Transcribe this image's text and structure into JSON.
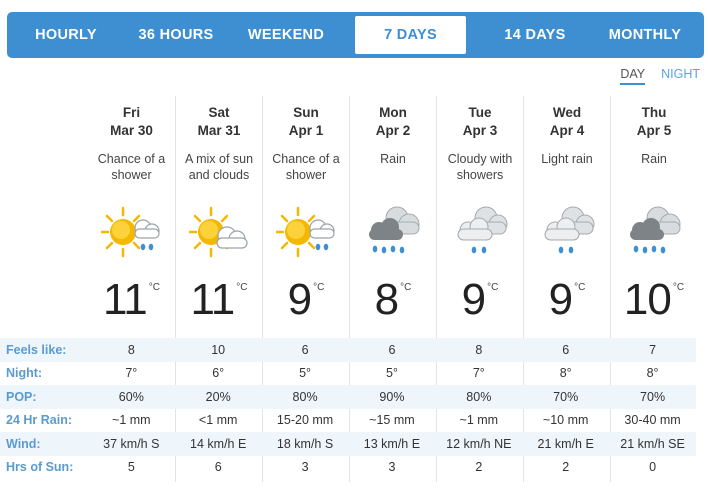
{
  "tabs": [
    {
      "label": "HOURLY",
      "active": false
    },
    {
      "label": "36 HOURS",
      "active": false
    },
    {
      "label": "WEEKEND",
      "active": false
    },
    {
      "label": "7 DAYS",
      "active": true
    },
    {
      "label": "14 DAYS",
      "active": false
    },
    {
      "label": "MONTHLY",
      "active": false
    }
  ],
  "toggle": {
    "day": "DAY",
    "night": "NIGHT",
    "selected": "DAY"
  },
  "temp_unit": "°C",
  "days": [
    {
      "name": "Fri",
      "date": "Mar 30",
      "condition": "Chance of a shower",
      "icon": "sun-cloud-rain-icon",
      "temp": "11"
    },
    {
      "name": "Sat",
      "date": "Mar 31",
      "condition": "A mix of sun and clouds",
      "icon": "sun-cloud-icon",
      "temp": "11"
    },
    {
      "name": "Sun",
      "date": "Apr 1",
      "condition": "Chance of a shower",
      "icon": "sun-cloud-rain-icon",
      "temp": "9"
    },
    {
      "name": "Mon",
      "date": "Apr 2",
      "condition": "Rain",
      "icon": "dark-cloud-rain-icon",
      "temp": "8"
    },
    {
      "name": "Tue",
      "date": "Apr 3",
      "condition": "Cloudy with showers",
      "icon": "cloud-light-rain-icon",
      "temp": "9"
    },
    {
      "name": "Wed",
      "date": "Apr 4",
      "condition": "Light rain",
      "icon": "cloud-light-rain-icon",
      "temp": "9"
    },
    {
      "name": "Thu",
      "date": "Apr 5",
      "condition": "Rain",
      "icon": "dark-cloud-rain-icon",
      "temp": "10"
    }
  ],
  "rows": [
    {
      "label": "Feels like:",
      "values": [
        "8",
        "10",
        "6",
        "6",
        "8",
        "6",
        "7"
      ]
    },
    {
      "label": "Night:",
      "values": [
        "7°",
        "6°",
        "5°",
        "5°",
        "7°",
        "8°",
        "8°"
      ]
    },
    {
      "label": "POP:",
      "values": [
        "60%",
        "20%",
        "80%",
        "90%",
        "80%",
        "70%",
        "70%"
      ]
    },
    {
      "label": "24 Hr Rain:",
      "values": [
        "~1 mm",
        "<1 mm",
        "15-20 mm",
        "~15 mm",
        "~1 mm",
        "~10 mm",
        "30-40 mm"
      ]
    },
    {
      "label": "Wind:",
      "values": [
        "37 km/h S",
        "14 km/h E",
        "18 km/h S",
        "13 km/h E",
        "12 km/h NE",
        "21 km/h E",
        "21 km/h SE"
      ]
    },
    {
      "label": "Hrs of Sun:",
      "values": [
        "5",
        "6",
        "3",
        "3",
        "2",
        "2",
        "0"
      ]
    }
  ],
  "colors": {
    "tab_bar": "#3d8fd1",
    "label_blue": "#5a9bd0",
    "row_shade": "#eef5fb",
    "sun": "#f5b800",
    "cloud_dark": "#8e9498",
    "rain_drop": "#3d8fd1"
  }
}
